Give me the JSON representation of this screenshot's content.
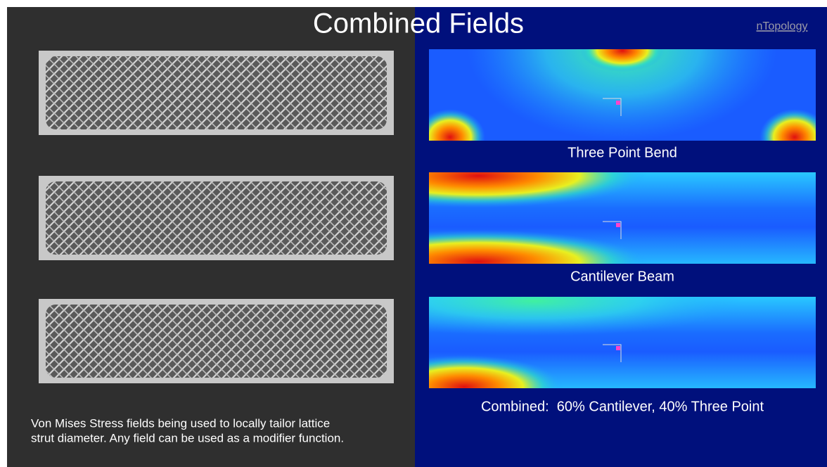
{
  "header": {
    "title": "Combined Fields",
    "logo": "nTopology"
  },
  "panels": [
    {
      "caption": "Three Point Bend"
    },
    {
      "caption": "Cantilever Beam"
    },
    {
      "caption": "Combined:  60% Cantilever, 40% Three Point"
    }
  ],
  "description": [
    "Von Mises Stress fields being used to locally tailor lattice",
    "strut diameter. Any field can be used as a modifier function."
  ]
}
